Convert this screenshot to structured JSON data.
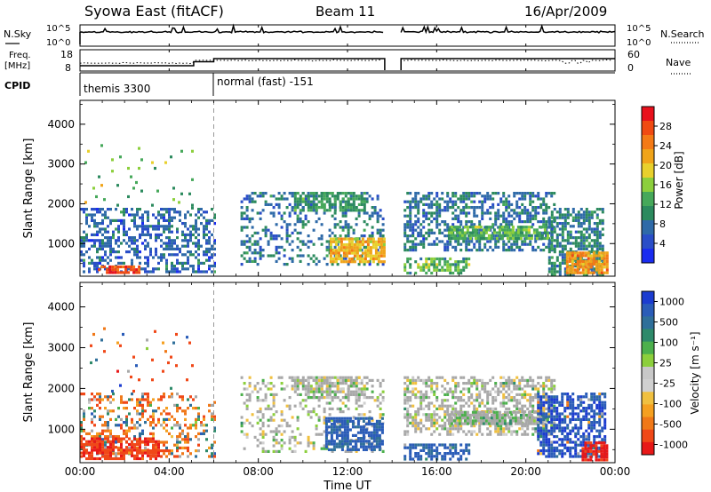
{
  "header": {
    "station": "Syowa East (fitACF)",
    "beam": "Beam 11",
    "date": "16/Apr/2009"
  },
  "noise_panel": {
    "left_label": "N.Sky",
    "right_label": "N.Search",
    "left_ticks": [
      "10^5",
      "10^0"
    ],
    "right_ticks": [
      "10^5",
      "10^0"
    ],
    "gap_hours": [
      13.67,
      14.4
    ]
  },
  "freq_panel": {
    "left_label_1": "Freq.",
    "left_label_2": "[MHz]",
    "left_ticks": [
      "18",
      "8"
    ],
    "right_label": "Nave",
    "right_ticks": [
      "60",
      "0"
    ]
  },
  "cpid_panel": {
    "label": "CPID",
    "modes": [
      {
        "name": "themis 3300",
        "start_hour": 0,
        "end_hour": 6
      },
      {
        "name": "normal (fast) -151",
        "start_hour": 6,
        "end_hour": 24
      }
    ]
  },
  "time_axis": {
    "label": "Time UT",
    "ticks": [
      "00:00",
      "04:00",
      "08:00",
      "12:00",
      "16:00",
      "20:00",
      "00:00"
    ]
  },
  "power_panel": {
    "ylabel": "Slant Range [km]",
    "cbar_label": "Power [dB]",
    "cbar_ticks": [
      "28",
      "24",
      "20",
      "16",
      "12",
      "8",
      "4"
    ],
    "cbar_colors": [
      "#e8101c",
      "#f04a12",
      "#f47a16",
      "#f0a41a",
      "#e8d02c",
      "#8ccf3c",
      "#46a85a",
      "#2c8a5e",
      "#2f6aa8",
      "#2a4ec8",
      "#1a2cf0"
    ]
  },
  "velocity_panel": {
    "ylabel": "Slant Range [km]",
    "cbar_label": "Velocity [m s⁻¹]",
    "cbar_ticks": [
      "1000",
      "500",
      "100",
      "25",
      "-25",
      "-100",
      "-500",
      "-1000"
    ],
    "cbar_colors": [
      "#1c3cd0",
      "#2a5cb8",
      "#2f6f9a",
      "#2e8a6a",
      "#4cb04c",
      "#8ccf3c",
      "#c8c8c8",
      "#d0d0d0",
      "#f0c040",
      "#f5a020",
      "#f07818",
      "#f04818",
      "#e81818"
    ],
    "ground_color": "#a8a8a8"
  },
  "chart_data": [
    {
      "type": "heatmap",
      "title": "Syowa East (fitACF)  Beam 11  16/Apr/2009",
      "variable": "Power [dB]",
      "xlabel": "Time UT",
      "ylabel": "Slant Range [km]",
      "x_ticks": [
        "00:00",
        "04:00",
        "08:00",
        "12:00",
        "16:00",
        "20:00",
        "00:00"
      ],
      "xlim_hours": [
        0,
        24
      ],
      "ylim": [
        180,
        4600
      ],
      "y_ticks": [
        1000,
        2000,
        3000,
        4000
      ],
      "colorbar_ticks": [
        4,
        8,
        12,
        16,
        20,
        24,
        28
      ],
      "data_gap_hours": [
        13.67,
        14.4
      ],
      "mode_change_hour": 6,
      "regions": [
        {
          "t0": 0.0,
          "t1": 6.0,
          "r0": 300,
          "r1": 1900,
          "density": 0.45,
          "value": 8,
          "spread": 6
        },
        {
          "t0": 0.2,
          "t1": 5.2,
          "r0": 1900,
          "r1": 3500,
          "density": 0.03,
          "value": 14,
          "spread": 8
        },
        {
          "t0": 0.8,
          "t1": 2.6,
          "r0": 250,
          "r1": 450,
          "density": 0.85,
          "value": 26,
          "spread": 4
        },
        {
          "t0": 7.2,
          "t1": 13.6,
          "r0": 450,
          "r1": 2300,
          "density": 0.28,
          "value": 9,
          "spread": 5
        },
        {
          "t0": 9.6,
          "t1": 12.8,
          "r0": 1800,
          "r1": 2300,
          "density": 0.7,
          "value": 12,
          "spread": 4
        },
        {
          "t0": 11.2,
          "t1": 13.6,
          "r0": 550,
          "r1": 1150,
          "density": 0.75,
          "value": 20,
          "spread": 5
        },
        {
          "t0": 14.4,
          "t1": 21.3,
          "r0": 800,
          "r1": 2300,
          "density": 0.5,
          "value": 9,
          "spread": 5
        },
        {
          "t0": 16.5,
          "t1": 21.0,
          "r0": 1150,
          "r1": 1450,
          "density": 0.8,
          "value": 14,
          "spread": 5
        },
        {
          "t0": 14.4,
          "t1": 17.5,
          "r0": 250,
          "r1": 650,
          "density": 0.55,
          "value": 14,
          "spread": 7
        },
        {
          "t0": 21.0,
          "t1": 23.5,
          "r0": 250,
          "r1": 1900,
          "density": 0.6,
          "value": 10,
          "spread": 5
        },
        {
          "t0": 21.8,
          "t1": 23.6,
          "r0": 250,
          "r1": 800,
          "density": 0.85,
          "value": 22,
          "spread": 5
        }
      ]
    },
    {
      "type": "heatmap",
      "title": "Syowa East (fitACF)  Beam 11  16/Apr/2009",
      "variable": "Velocity [m s-1]",
      "xlabel": "Time UT",
      "ylabel": "Slant Range [km]",
      "x_ticks": [
        "00:00",
        "04:00",
        "08:00",
        "12:00",
        "16:00",
        "20:00",
        "00:00"
      ],
      "xlim_hours": [
        0,
        24
      ],
      "ylim": [
        180,
        4600
      ],
      "y_ticks": [
        1000,
        2000,
        3000,
        4000
      ],
      "colorbar_ticks": [
        1000,
        500,
        100,
        25,
        -25,
        -100,
        -500,
        -1000
      ],
      "data_gap_hours": [
        13.67,
        14.4
      ],
      "mode_change_hour": 6,
      "regions": [
        {
          "t0": 0.0,
          "t1": 6.0,
          "r0": 300,
          "r1": 1900,
          "density": 0.35,
          "value": -50,
          "spread": 250
        },
        {
          "t0": 0.2,
          "t1": 5.2,
          "r0": 1900,
          "r1": 3500,
          "density": 0.03,
          "value": -100,
          "spread": 500
        },
        {
          "t0": 0.0,
          "t1": 3.5,
          "r0": 250,
          "r1": 800,
          "density": 0.7,
          "value": -300,
          "spread": 300
        },
        {
          "t0": 7.2,
          "t1": 13.6,
          "r0": 450,
          "r1": 2300,
          "density": 0.25,
          "value": 0,
          "spread": 20
        },
        {
          "t0": 9.6,
          "t1": 12.8,
          "r0": 1800,
          "r1": 2300,
          "density": 0.7,
          "value": 0,
          "spread": 15
        },
        {
          "t0": 11.0,
          "t1": 13.6,
          "r0": 500,
          "r1": 1300,
          "density": 0.7,
          "value": 150,
          "spread": 120
        },
        {
          "t0": 14.4,
          "t1": 21.3,
          "r0": 900,
          "r1": 2300,
          "density": 0.5,
          "value": 0,
          "spread": 20
        },
        {
          "t0": 16.5,
          "t1": 21.0,
          "r0": 1150,
          "r1": 1450,
          "density": 0.8,
          "value": 10,
          "spread": 15
        },
        {
          "t0": 14.4,
          "t1": 17.5,
          "r0": 250,
          "r1": 650,
          "density": 0.55,
          "value": 150,
          "spread": 200
        },
        {
          "t0": 20.5,
          "t1": 23.6,
          "r0": 300,
          "r1": 1900,
          "density": 0.65,
          "value": 300,
          "spread": 500
        },
        {
          "t0": 22.5,
          "t1": 23.6,
          "r0": 250,
          "r1": 700,
          "density": 0.8,
          "value": -400,
          "spread": 300
        }
      ]
    }
  ]
}
